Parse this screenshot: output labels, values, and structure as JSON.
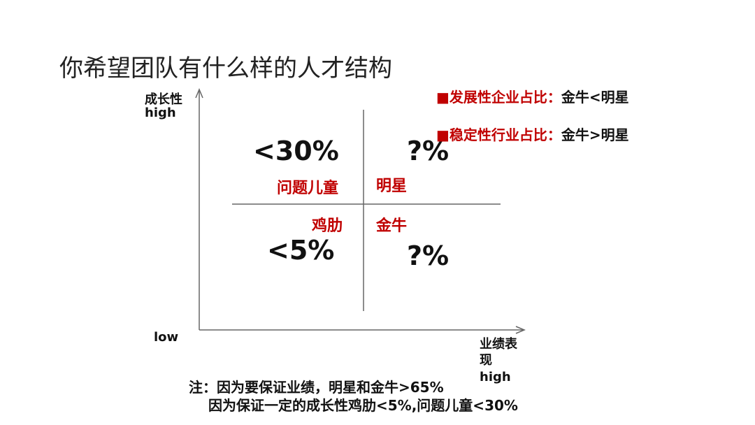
{
  "title": "你希望团队有什么样的人才结构",
  "axes": {
    "y_label": "成长性",
    "y_high": "high",
    "origin": "low",
    "x_label": "业绩表现",
    "x_high": "high"
  },
  "quadrants": [
    {
      "value": "<30%",
      "label": "问题儿童"
    },
    {
      "value": "?%",
      "label": "明星"
    },
    {
      "value": "<5%",
      "label": "鸡肋"
    },
    {
      "value": "?%",
      "label": "金牛"
    }
  ],
  "notes": [
    {
      "key": "■发展性企业占比：",
      "text": "金牛<明星"
    },
    {
      "key": "■稳定性行业占比：",
      "text": "金牛>明星"
    }
  ],
  "footer": [
    "注：因为要保证业绩，明星和金牛>65%",
    "因为保证一定的成长性鸡肋<5%,问题儿童<30%"
  ]
}
